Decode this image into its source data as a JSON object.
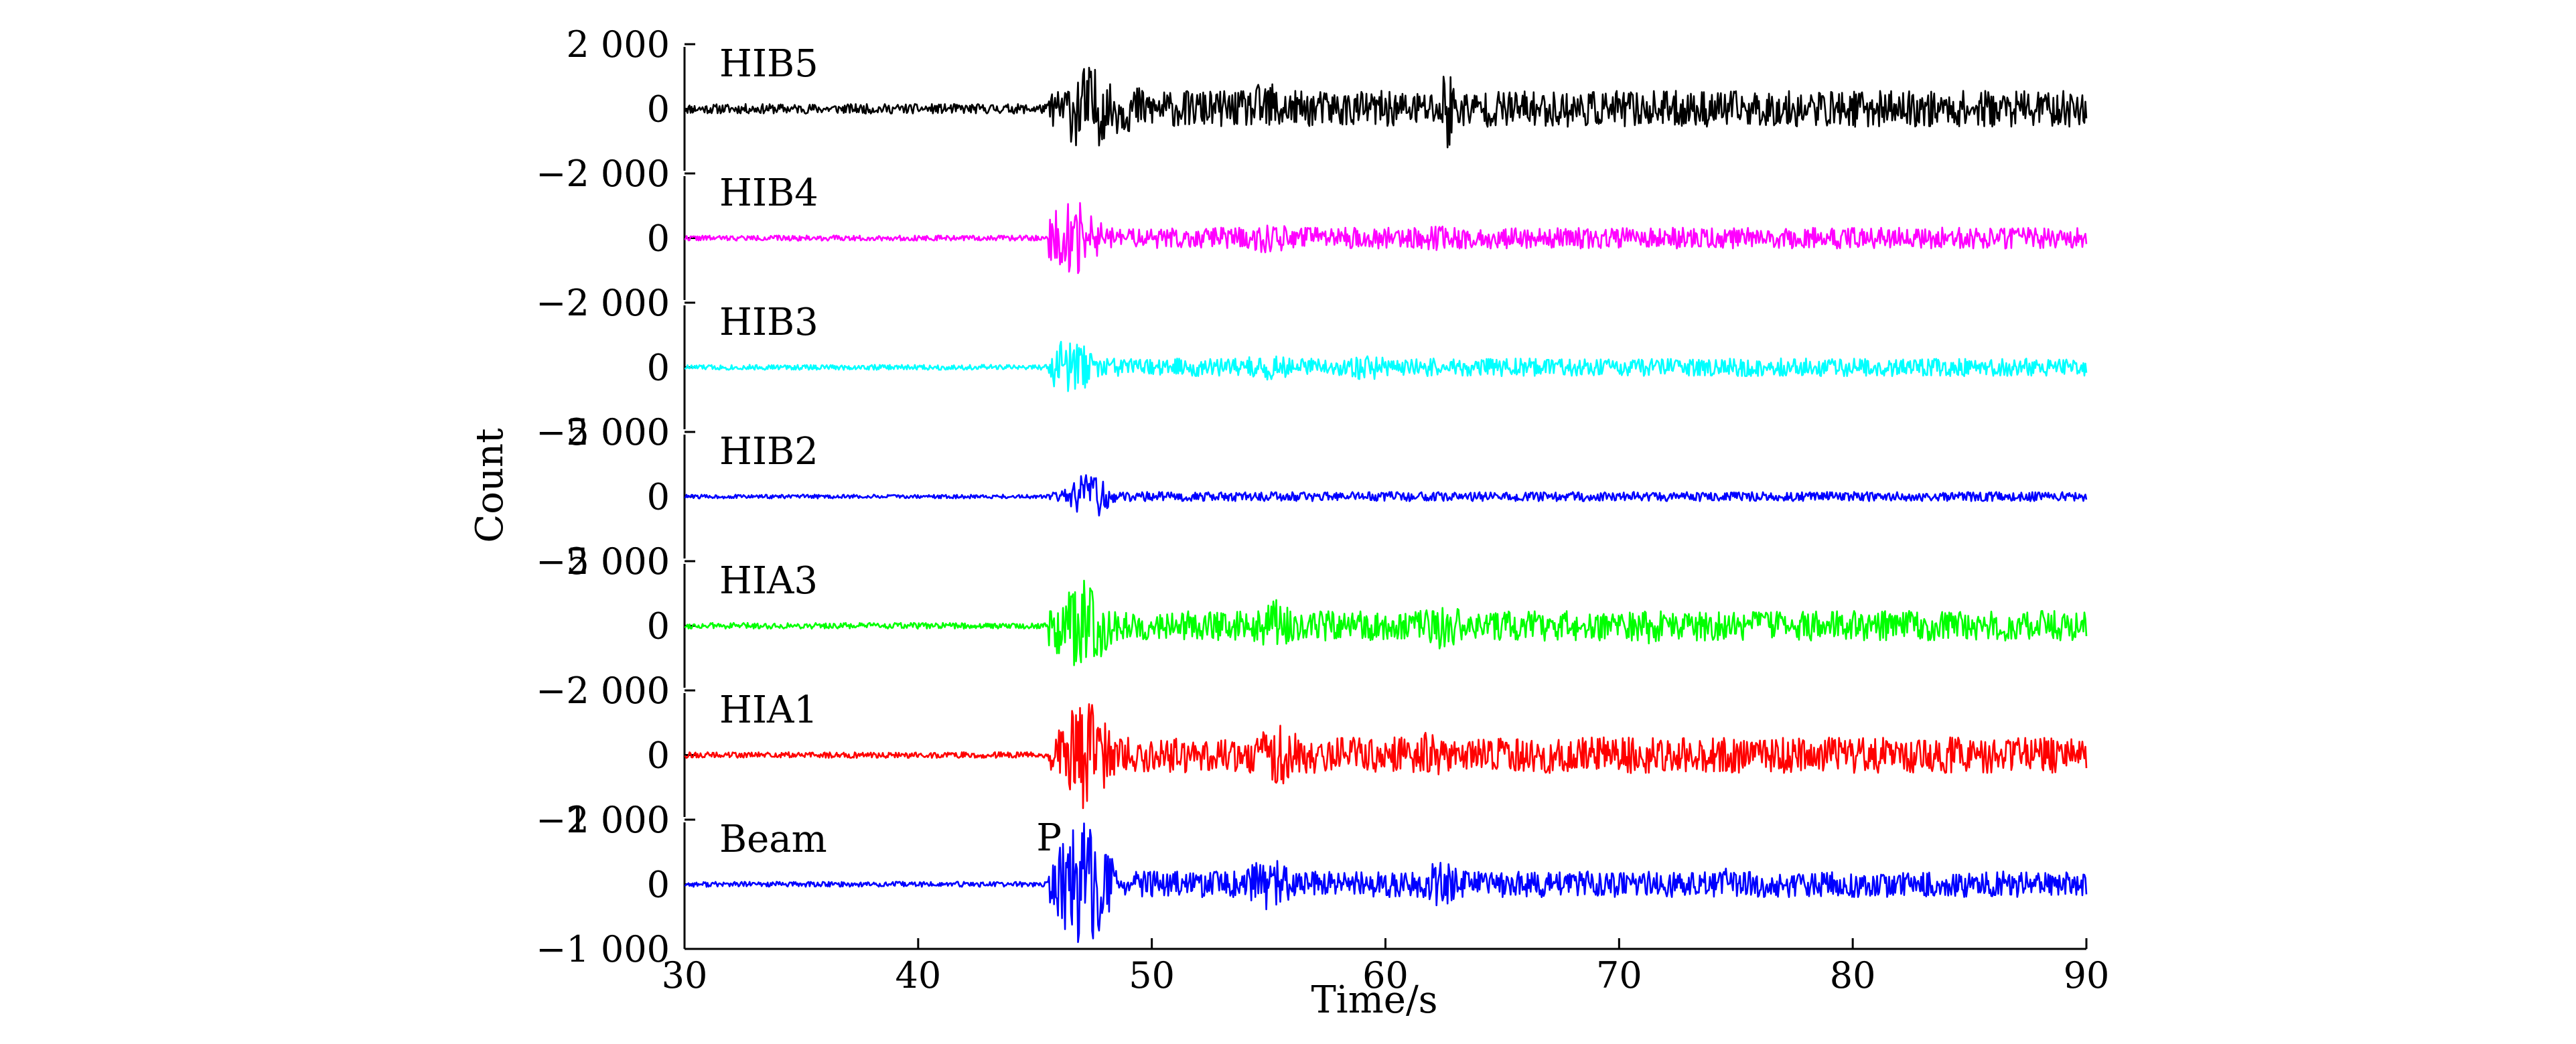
{
  "chart_data": {
    "type": "line",
    "title": "",
    "xlabel": "Time/s",
    "ylabel": "Count",
    "xlim": [
      30,
      90
    ],
    "xticks": [
      30,
      40,
      50,
      60,
      70,
      80,
      90
    ],
    "xtick_labels": [
      "30",
      "40",
      "50",
      "60",
      "70",
      "80",
      "90"
    ],
    "grid": false,
    "annotations": [
      {
        "text": "P",
        "x": 45.6,
        "panel": "Beam"
      }
    ],
    "series": [
      {
        "name": "HIB5",
        "color": "#000000",
        "ylim": [
          -2000,
          2000
        ],
        "ytick_labels": [
          "2 000",
          "0",
          "−2 000"
        ],
        "noise": 150,
        "peak": 1550,
        "bursts": [
          [
            47.2,
            1.2,
            0.9
          ],
          [
            55,
            1.3,
            0.55
          ],
          [
            62.6,
            0.4,
            1.0
          ],
          [
            48.5,
            3.0,
            0.5
          ]
        ],
        "coda": 0.36,
        "seed": 11
      },
      {
        "name": "HIB4",
        "color": "#ff00ff",
        "ylim": [
          -2000,
          2000
        ],
        "ytick_labels": [
          "2 000",
          "0",
          "−2 000"
        ],
        "noise": 80,
        "peak": 1300,
        "bursts": [
          [
            46.6,
            1.3,
            0.9
          ],
          [
            55,
            1.5,
            0.35
          ],
          [
            62.2,
            1.2,
            0.3
          ]
        ],
        "coda": 0.25,
        "seed": 22
      },
      {
        "name": "HIB3",
        "color": "#00ffff",
        "ylim": [
          -2000,
          2000
        ],
        "ytick_labels": [
          "2 000",
          "0",
          "−2 000"
        ],
        "noise": 80,
        "peak": 1100,
        "bursts": [
          [
            46.4,
            1.2,
            0.9
          ],
          [
            55,
            1.5,
            0.4
          ],
          [
            59.2,
            1.4,
            0.35
          ]
        ],
        "coda": 0.25,
        "seed": 33
      },
      {
        "name": "HIB2",
        "color": "#0000ff",
        "ylim": [
          -5000,
          5000
        ],
        "ytick_labels": [
          "5 000",
          "0",
          "−5 000"
        ],
        "noise": 150,
        "peak": 2000,
        "bursts": [
          [
            47.3,
            1.0,
            0.9
          ]
        ],
        "coda": 0.18,
        "seed": 44
      },
      {
        "name": "HIA3",
        "color": "#00ff00",
        "ylim": [
          -2000,
          2000
        ],
        "ytick_labels": [
          "2 000",
          "0",
          "−2 000"
        ],
        "noise": 90,
        "peak": 1650,
        "bursts": [
          [
            46.9,
            1.4,
            0.9
          ],
          [
            55.2,
            1.2,
            0.5
          ],
          [
            62.4,
            1.2,
            0.45
          ],
          [
            71.2,
            1.0,
            0.35
          ]
        ],
        "coda": 0.28,
        "seed": 55
      },
      {
        "name": "HIA1",
        "color": "#ff0000",
        "ylim": [
          -2000,
          2000
        ],
        "ytick_labels": [
          "2 000",
          "0",
          "−2 000"
        ],
        "noise": 90,
        "peak": 1850,
        "bursts": [
          [
            47.1,
            1.3,
            0.9
          ],
          [
            55.4,
            1.3,
            0.5
          ],
          [
            62,
            1.2,
            0.4
          ],
          [
            70.4,
            1.0,
            0.35
          ]
        ],
        "coda": 0.3,
        "seed": 66
      },
      {
        "name": "Beam",
        "color": "#0000ff",
        "ylim": [
          -1000,
          1000
        ],
        "ytick_labels": [
          "1 000",
          "0",
          "−1 000"
        ],
        "noise": 40,
        "peak": 1000,
        "bursts": [
          [
            47,
            1.4,
            0.95
          ],
          [
            55,
            1.3,
            0.4
          ],
          [
            62.4,
            1.2,
            0.35
          ],
          [
            74.6,
            0.8,
            0.25
          ]
        ],
        "coda": 0.2,
        "seed": 77
      }
    ]
  }
}
